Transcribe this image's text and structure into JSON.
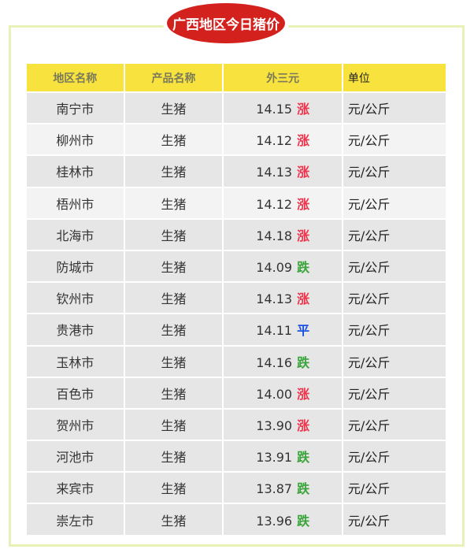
{
  "title": "广西地区今日猪价",
  "headers": [
    "地区名称",
    "产品名称",
    "外三元",
    "单位"
  ],
  "trend_colors": {
    "涨": "#f0334b",
    "跌": "#3aa43a",
    "平": "#1a4fe0"
  },
  "rows": [
    {
      "region": "南宁市",
      "product": "生猪",
      "price": "14.15",
      "trend": "涨",
      "unit": "元/公斤"
    },
    {
      "region": "柳州市",
      "product": "生猪",
      "price": "14.12",
      "trend": "涨",
      "unit": "元/公斤"
    },
    {
      "region": "桂林市",
      "product": "生猪",
      "price": "14.13",
      "trend": "涨",
      "unit": "元/公斤"
    },
    {
      "region": "梧州市",
      "product": "生猪",
      "price": "14.12",
      "trend": "涨",
      "unit": "元/公斤"
    },
    {
      "region": "北海市",
      "product": "生猪",
      "price": "14.18",
      "trend": "涨",
      "unit": "元/公斤"
    },
    {
      "region": "防城市",
      "product": "生猪",
      "price": "14.09",
      "trend": "跌",
      "unit": "元/公斤"
    },
    {
      "region": "钦州市",
      "product": "生猪",
      "price": "14.13",
      "trend": "涨",
      "unit": "元/公斤"
    },
    {
      "region": "贵港市",
      "product": "生猪",
      "price": "14.11",
      "trend": "平",
      "unit": "元/公斤"
    },
    {
      "region": "玉林市",
      "product": "生猪",
      "price": "14.16",
      "trend": "跌",
      "unit": "元/公斤"
    },
    {
      "region": "百色市",
      "product": "生猪",
      "price": "14.00",
      "trend": "涨",
      "unit": "元/公斤"
    },
    {
      "region": "贺州市",
      "product": "生猪",
      "price": "13.90",
      "trend": "涨",
      "unit": "元/公斤"
    },
    {
      "region": "河池市",
      "product": "生猪",
      "price": "13.91",
      "trend": "跌",
      "unit": "元/公斤"
    },
    {
      "region": "来宾市",
      "product": "生猪",
      "price": "13.87",
      "trend": "跌",
      "unit": "元/公斤"
    },
    {
      "region": "崇左市",
      "product": "生猪",
      "price": "13.96",
      "trend": "跌",
      "unit": "元/公斤"
    }
  ]
}
